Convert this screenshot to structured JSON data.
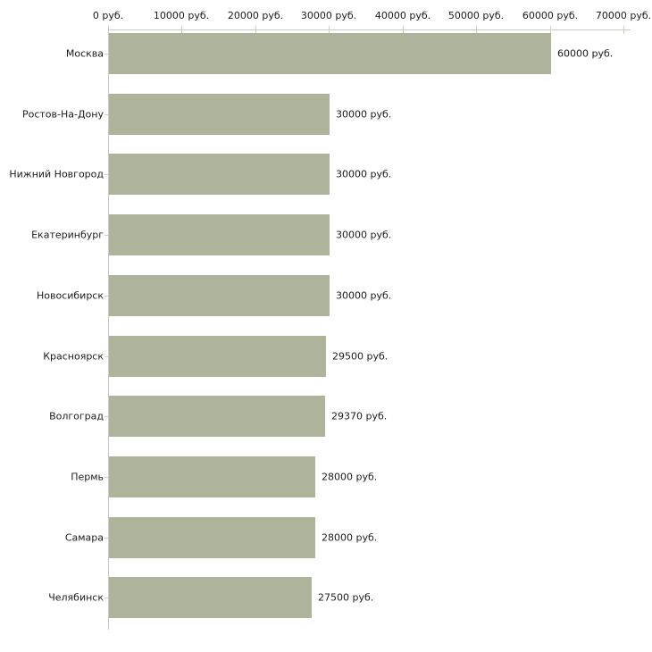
{
  "chart_data": {
    "type": "bar",
    "orientation": "horizontal",
    "grid": "off",
    "legend": "none",
    "unit": "руб.",
    "categories": [
      "Москва",
      "Ростов-На-Дону",
      "Нижний Новгород",
      "Екатеринбург",
      "Новосибирск",
      "Красноярск",
      "Волгоград",
      "Пермь",
      "Самара",
      "Челябинск"
    ],
    "values": [
      60000,
      30000,
      30000,
      30000,
      30000,
      29500,
      29370,
      28000,
      28000,
      27500
    ],
    "value_labels": [
      "60000 руб.",
      "30000 руб.",
      "30000 руб.",
      "30000 руб.",
      "30000 руб.",
      "29500 руб.",
      "29370 руб.",
      "28000 руб.",
      "28000 руб.",
      "27500 руб."
    ],
    "x_axis": {
      "position": "top",
      "min": 0,
      "max": 70000,
      "tick_interval": 10000,
      "tick_values": [
        0,
        10000,
        20000,
        30000,
        40000,
        50000,
        60000,
        70000
      ],
      "tick_labels": [
        "0 руб.",
        "10000 руб.",
        "20000 руб.",
        "30000 руб.",
        "40000 руб.",
        "50000 руб.",
        "60000 руб.",
        "70000 руб."
      ]
    },
    "colors": {
      "bar": "#aeb49b",
      "axis_line": "#c9c9c9",
      "tick_mark": "#d2d5a8",
      "text": "#1c1c1c",
      "background": "#ffffff"
    }
  }
}
